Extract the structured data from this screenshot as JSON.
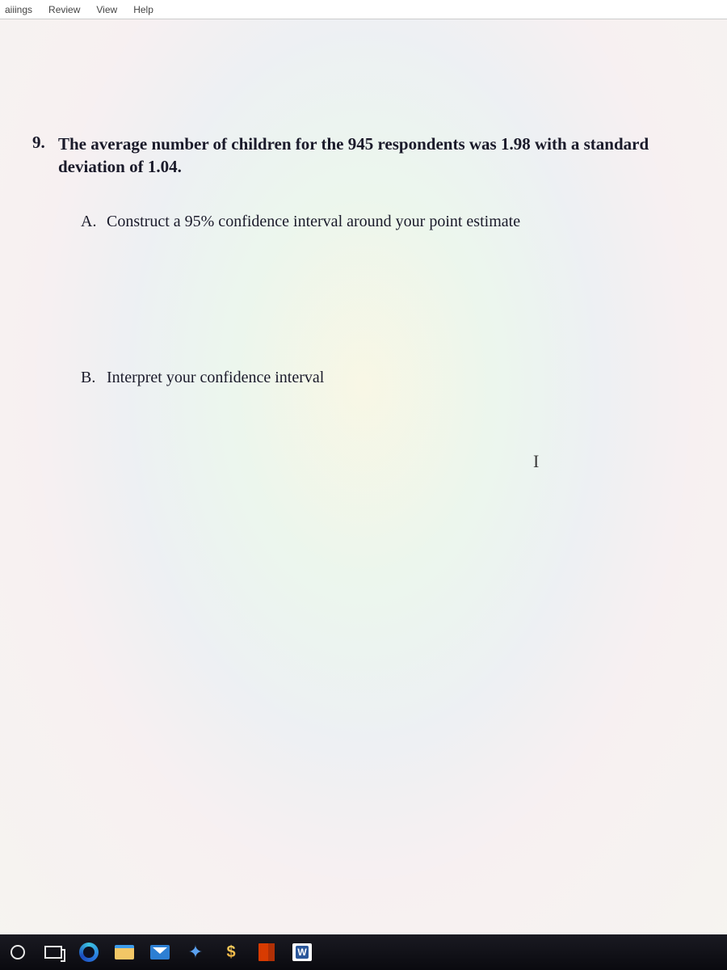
{
  "menubar": {
    "items": [
      "aiiings",
      "Review",
      "View",
      "Help"
    ],
    "font_family": "Arial",
    "font_size_pt": 9,
    "text_color": "#444444",
    "background_color": "#ffffff"
  },
  "document": {
    "background_color": "#f6f4ef",
    "moire_tints": [
      "#fff5c2",
      "#c9f4e4",
      "#cfe2ff",
      "#f6d8ff"
    ],
    "text_color": "#1a1a2a",
    "question": {
      "number": "9.",
      "stem": "The average number of children for the 945 respondents was 1.98 with a standard deviation of 1.04.",
      "stem_font_size_pt": 16,
      "stem_font_weight": "bold",
      "parts": [
        {
          "label": "A.",
          "text": "Construct a 95% confidence interval around your point estimate",
          "font_size_pt": 15
        },
        {
          "label": "B.",
          "text": "Interpret your confidence interval",
          "font_size_pt": 15
        }
      ]
    },
    "cursor_glyph": "I"
  },
  "taskbar": {
    "background_color_top": "#1a1a22",
    "background_color_bottom": "#0a0a0f",
    "icons": [
      {
        "name": "search-icon"
      },
      {
        "name": "taskview-icon"
      },
      {
        "name": "edge-icon"
      },
      {
        "name": "file-explorer-icon"
      },
      {
        "name": "mail-icon"
      },
      {
        "name": "dropbox-icon",
        "glyph": "✦"
      },
      {
        "name": "dollar-icon",
        "glyph": "$"
      },
      {
        "name": "office-icon"
      },
      {
        "name": "word-icon",
        "glyph": "W"
      }
    ]
  }
}
